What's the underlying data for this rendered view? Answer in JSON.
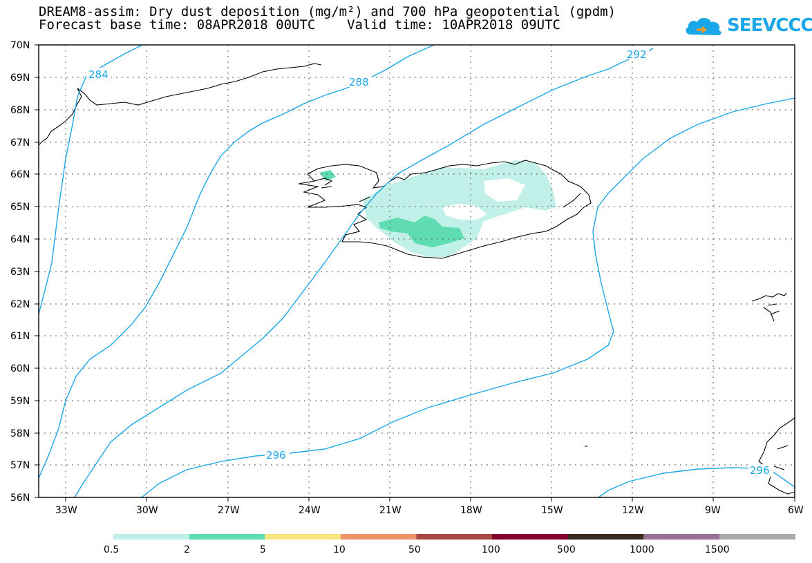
{
  "title_line1": "DREAM8-assim: Dry dust deposition (mg/m²) and 700 hPa geopotential (gpdm)",
  "title_line2": "Forecast base time: 08APR2018 00UTC    Valid time: 10APR2018 09UTC",
  "logo_text": "SEEVCCC",
  "lat_labels": [
    "70N",
    "69N",
    "68N",
    "67N",
    "66N",
    "65N",
    "64N",
    "63N",
    "62N",
    "61N",
    "60N",
    "59N",
    "58N",
    "57N",
    "56N"
  ],
  "lon_labels": [
    "33W",
    "30W",
    "27W",
    "24W",
    "21W",
    "18W",
    "15W",
    "12W",
    "9W",
    "6W"
  ],
  "contour_labels": [
    "284",
    "288",
    "292",
    "296",
    "296"
  ],
  "contour_color": "#1aa7ea",
  "legend": {
    "colors": [
      "#c1f0e8",
      "#5fdcb1",
      "#f8e77f",
      "#ec946c",
      "#a84a42",
      "#82042e",
      "#3a2a1d",
      "#987094",
      "#a9a9a9"
    ],
    "labels": [
      "0.5",
      "2",
      "5",
      "10",
      "50",
      "100",
      "500",
      "1000",
      "1500"
    ]
  }
}
